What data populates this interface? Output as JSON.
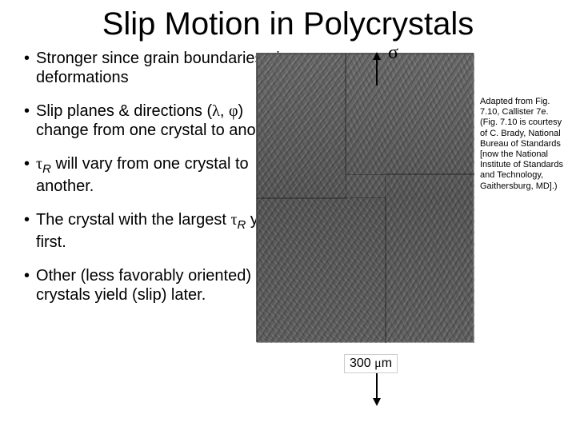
{
  "title": "Slip Motion in Polycrystals",
  "bullets": {
    "b1": "Stronger since grain boundaries pin deformations",
    "b2a": "Slip planes & directions (",
    "b2b": ") change from one crystal to another.",
    "b3a": " will vary from one crystal to another.",
    "b4a": "The crystal with the largest ",
    "b4b": " yields first.",
    "b5": "Other (less favorably oriented) crystals yield (slip) later."
  },
  "symbols": {
    "sigma": "σ",
    "tau": "τ",
    "lambda": "λ",
    "phi": "φ",
    "mu": "μ",
    "subR": "R"
  },
  "scale": {
    "value": "300 ",
    "unit": "m"
  },
  "caption": "Adapted from Fig. 7.10, Callister 7e. (Fig. 7.10 is courtesy of C. Brady, National Bureau of Standards [now the National Institute of Standards and Technology, Gaithersburg, MD].)"
}
